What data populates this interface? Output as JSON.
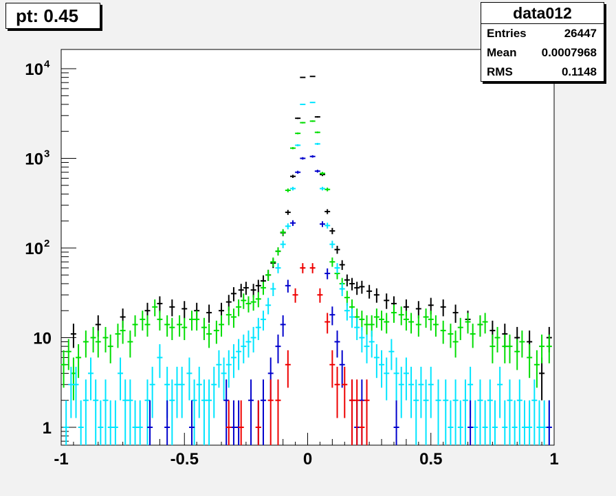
{
  "title_box": {
    "text": "pt: 0.45"
  },
  "stats_box": {
    "name": "data012",
    "rows": [
      {
        "label": "Entries",
        "value": "26447"
      },
      {
        "label": "Mean",
        "value": "0.0007968"
      },
      {
        "label": "RMS",
        "value": "0.1148"
      }
    ]
  },
  "colors": {
    "background": "#f2f2f2",
    "frame": "#ffffff"
  },
  "chart_data": {
    "type": "scatter",
    "title": "",
    "xlabel": "",
    "ylabel": "",
    "xlim": [
      -1,
      1
    ],
    "ylim": [
      0.6,
      17000
    ],
    "yscale": "log",
    "grid": false,
    "legend": "none",
    "xticks": [
      {
        "value": -1,
        "label": "-1"
      },
      {
        "value": -0.5,
        "label": "-0.5"
      },
      {
        "value": 0,
        "label": "0"
      },
      {
        "value": 0.5,
        "label": "0.5"
      },
      {
        "value": 1,
        "label": "1"
      }
    ],
    "yticks": [
      {
        "value": 1,
        "label": "1"
      },
      {
        "value": 10,
        "label": "10"
      },
      {
        "value": 100,
        "label": "10",
        "exp": "2"
      },
      {
        "value": 1000,
        "label": "10",
        "exp": "3"
      },
      {
        "value": 10000,
        "label": "10",
        "exp": "4"
      }
    ],
    "series": [
      {
        "color": "#000000",
        "points": [
          [
            -0.95,
            11
          ],
          [
            -0.85,
            14
          ],
          [
            -0.75,
            17
          ],
          [
            -0.65,
            20
          ],
          [
            -0.6,
            24
          ],
          [
            -0.55,
            22
          ],
          [
            -0.5,
            21
          ],
          [
            -0.45,
            20
          ],
          [
            -0.4,
            19
          ],
          [
            -0.35,
            20
          ],
          [
            -0.32,
            25
          ],
          [
            -0.3,
            31
          ],
          [
            -0.27,
            34
          ],
          [
            -0.25,
            36
          ],
          [
            -0.22,
            34
          ],
          [
            -0.2,
            38
          ],
          [
            -0.18,
            43
          ],
          [
            -0.16,
            50
          ],
          [
            -0.14,
            68
          ],
          [
            -0.12,
            92
          ],
          [
            -0.1,
            148
          ],
          [
            -0.08,
            250
          ],
          [
            -0.06,
            630
          ],
          [
            -0.04,
            2800
          ],
          [
            -0.02,
            8000
          ],
          [
            0.02,
            8200
          ],
          [
            0.04,
            2900
          ],
          [
            0.06,
            660
          ],
          [
            0.08,
            255
          ],
          [
            0.1,
            155
          ],
          [
            0.12,
            96
          ],
          [
            0.14,
            65
          ],
          [
            0.16,
            44
          ],
          [
            0.18,
            40
          ],
          [
            0.2,
            36
          ],
          [
            0.22,
            37
          ],
          [
            0.25,
            33
          ],
          [
            0.28,
            30
          ],
          [
            0.32,
            26
          ],
          [
            0.35,
            24
          ],
          [
            0.4,
            22
          ],
          [
            0.45,
            21
          ],
          [
            0.5,
            23
          ],
          [
            0.55,
            22
          ],
          [
            0.6,
            19
          ],
          [
            0.65,
            16
          ],
          [
            0.7,
            14
          ],
          [
            0.75,
            12
          ],
          [
            0.8,
            11
          ],
          [
            0.85,
            10
          ],
          [
            0.9,
            9
          ],
          [
            0.95,
            4
          ],
          [
            0.98,
            10
          ]
        ]
      },
      {
        "color": "#00dd00",
        "points": [
          [
            -0.99,
            5
          ],
          [
            -0.97,
            7
          ],
          [
            -0.95,
            4
          ],
          [
            -0.93,
            6
          ],
          [
            -0.9,
            9
          ],
          [
            -0.87,
            10
          ],
          [
            -0.85,
            9
          ],
          [
            -0.82,
            10
          ],
          [
            -0.8,
            8
          ],
          [
            -0.77,
            11
          ],
          [
            -0.75,
            12
          ],
          [
            -0.72,
            9
          ],
          [
            -0.7,
            14
          ],
          [
            -0.67,
            16
          ],
          [
            -0.65,
            14
          ],
          [
            -0.62,
            22
          ],
          [
            -0.6,
            16
          ],
          [
            -0.57,
            14
          ],
          [
            -0.55,
            13
          ],
          [
            -0.52,
            14
          ],
          [
            -0.5,
            13
          ],
          [
            -0.47,
            16
          ],
          [
            -0.45,
            16
          ],
          [
            -0.42,
            13
          ],
          [
            -0.4,
            11
          ],
          [
            -0.37,
            12
          ],
          [
            -0.35,
            14
          ],
          [
            -0.32,
            18
          ],
          [
            -0.3,
            17
          ],
          [
            -0.28,
            22
          ],
          [
            -0.26,
            26
          ],
          [
            -0.24,
            24
          ],
          [
            -0.22,
            25
          ],
          [
            -0.2,
            27
          ],
          [
            -0.18,
            36
          ],
          [
            -0.16,
            50
          ],
          [
            -0.14,
            70
          ],
          [
            -0.12,
            92
          ],
          [
            -0.1,
            150
          ],
          [
            -0.08,
            440
          ],
          [
            -0.06,
            1300
          ],
          [
            -0.04,
            1900
          ],
          [
            -0.02,
            2500
          ],
          [
            0.02,
            2600
          ],
          [
            0.04,
            1950
          ],
          [
            0.06,
            680
          ],
          [
            0.08,
            450
          ],
          [
            0.1,
            70
          ],
          [
            0.12,
            52
          ],
          [
            0.14,
            40
          ],
          [
            0.16,
            28
          ],
          [
            0.18,
            22
          ],
          [
            0.2,
            17
          ],
          [
            0.22,
            16
          ],
          [
            0.24,
            14
          ],
          [
            0.26,
            14
          ],
          [
            0.28,
            17
          ],
          [
            0.3,
            16
          ],
          [
            0.32,
            15
          ],
          [
            0.35,
            19
          ],
          [
            0.38,
            18
          ],
          [
            0.4,
            16
          ],
          [
            0.42,
            15
          ],
          [
            0.45,
            14
          ],
          [
            0.48,
            17
          ],
          [
            0.5,
            16
          ],
          [
            0.52,
            14
          ],
          [
            0.55,
            12
          ],
          [
            0.58,
            11
          ],
          [
            0.6,
            9
          ],
          [
            0.62,
            13
          ],
          [
            0.65,
            15
          ],
          [
            0.67,
            11
          ],
          [
            0.7,
            14
          ],
          [
            0.72,
            15
          ],
          [
            0.75,
            8
          ],
          [
            0.77,
            10
          ],
          [
            0.8,
            8
          ],
          [
            0.82,
            8
          ],
          [
            0.85,
            7
          ],
          [
            0.87,
            9
          ],
          [
            0.9,
            6
          ],
          [
            0.93,
            5
          ],
          [
            0.95,
            8
          ],
          [
            0.98,
            8
          ]
        ]
      },
      {
        "color": "#00e5ff",
        "points": [
          [
            -0.98,
            1
          ],
          [
            -0.96,
            3
          ],
          [
            -0.94,
            3
          ],
          [
            -0.92,
            1
          ],
          [
            -0.9,
            2
          ],
          [
            -0.88,
            4
          ],
          [
            -0.86,
            2
          ],
          [
            -0.84,
            1
          ],
          [
            -0.82,
            2
          ],
          [
            -0.8,
            1
          ],
          [
            -0.78,
            1
          ],
          [
            -0.76,
            4
          ],
          [
            -0.74,
            2
          ],
          [
            -0.72,
            2
          ],
          [
            -0.7,
            1
          ],
          [
            -0.68,
            1
          ],
          [
            -0.65,
            2
          ],
          [
            -0.63,
            3
          ],
          [
            -0.6,
            6
          ],
          [
            -0.57,
            3
          ],
          [
            -0.55,
            2
          ],
          [
            -0.53,
            3
          ],
          [
            -0.51,
            3
          ],
          [
            -0.48,
            4
          ],
          [
            -0.46,
            2
          ],
          [
            -0.44,
            3
          ],
          [
            -0.42,
            2
          ],
          [
            -0.4,
            2
          ],
          [
            -0.38,
            3
          ],
          [
            -0.36,
            5
          ],
          [
            -0.34,
            4
          ],
          [
            -0.32,
            5
          ],
          [
            -0.3,
            6
          ],
          [
            -0.28,
            7
          ],
          [
            -0.26,
            8
          ],
          [
            -0.24,
            9
          ],
          [
            -0.22,
            10
          ],
          [
            -0.2,
            13
          ],
          [
            -0.18,
            16
          ],
          [
            -0.16,
            23
          ],
          [
            -0.14,
            35
          ],
          [
            -0.12,
            60
          ],
          [
            -0.1,
            110
          ],
          [
            -0.08,
            175
          ],
          [
            -0.06,
            460
          ],
          [
            -0.04,
            1400
          ],
          [
            -0.02,
            4000
          ],
          [
            0.02,
            4200
          ],
          [
            0.04,
            1450
          ],
          [
            0.06,
            460
          ],
          [
            0.08,
            178
          ],
          [
            0.1,
            110
          ],
          [
            0.12,
            60
          ],
          [
            0.14,
            35
          ],
          [
            0.16,
            20
          ],
          [
            0.18,
            17
          ],
          [
            0.2,
            13
          ],
          [
            0.22,
            10
          ],
          [
            0.24,
            8
          ],
          [
            0.26,
            9
          ],
          [
            0.28,
            6
          ],
          [
            0.3,
            5
          ],
          [
            0.32,
            4
          ],
          [
            0.34,
            7
          ],
          [
            0.36,
            4
          ],
          [
            0.38,
            3
          ],
          [
            0.4,
            4
          ],
          [
            0.42,
            3
          ],
          [
            0.44,
            2
          ],
          [
            0.46,
            3
          ],
          [
            0.48,
            2
          ],
          [
            0.5,
            3
          ],
          [
            0.53,
            2
          ],
          [
            0.56,
            2
          ],
          [
            0.58,
            1
          ],
          [
            0.6,
            2
          ],
          [
            0.62,
            1
          ],
          [
            0.64,
            2
          ],
          [
            0.66,
            3
          ],
          [
            0.68,
            1
          ],
          [
            0.7,
            2
          ],
          [
            0.72,
            1
          ],
          [
            0.74,
            2
          ],
          [
            0.76,
            1
          ],
          [
            0.78,
            3
          ],
          [
            0.8,
            1
          ],
          [
            0.82,
            2
          ],
          [
            0.84,
            1
          ],
          [
            0.86,
            2
          ],
          [
            0.88,
            1
          ],
          [
            0.9,
            1
          ],
          [
            0.92,
            2
          ],
          [
            0.94,
            1
          ],
          [
            0.96,
            1
          ],
          [
            0.98,
            1
          ]
        ]
      },
      {
        "color": "#0000cc",
        "points": [
          [
            -0.64,
            1
          ],
          [
            -0.57,
            1
          ],
          [
            -0.47,
            1
          ],
          [
            -0.33,
            2
          ],
          [
            -0.3,
            1
          ],
          [
            -0.28,
            1
          ],
          [
            -0.23,
            2
          ],
          [
            -0.2,
            1
          ],
          [
            -0.18,
            2
          ],
          [
            -0.15,
            4
          ],
          [
            -0.12,
            8
          ],
          [
            -0.1,
            14
          ],
          [
            -0.08,
            38
          ],
          [
            -0.06,
            190
          ],
          [
            -0.04,
            700
          ],
          [
            -0.02,
            1000
          ],
          [
            0.02,
            1050
          ],
          [
            0.04,
            720
          ],
          [
            0.06,
            185
          ],
          [
            0.08,
            52
          ],
          [
            0.1,
            18
          ],
          [
            0.12,
            9
          ],
          [
            0.14,
            5
          ],
          [
            0.18,
            2
          ],
          [
            0.2,
            1
          ],
          [
            0.22,
            2
          ],
          [
            0.36,
            1
          ],
          [
            0.66,
            1
          ],
          [
            0.98,
            1
          ]
        ]
      },
      {
        "color": "#ee0000",
        "points": [
          [
            -0.32,
            1
          ],
          [
            -0.27,
            1
          ],
          [
            -0.2,
            1
          ],
          [
            -0.15,
            2
          ],
          [
            -0.12,
            2
          ],
          [
            -0.08,
            5
          ],
          [
            -0.05,
            30
          ],
          [
            -0.02,
            60
          ],
          [
            0.02,
            60
          ],
          [
            0.05,
            30
          ],
          [
            0.08,
            15
          ],
          [
            0.1,
            5
          ],
          [
            0.12,
            3
          ],
          [
            0.15,
            3
          ],
          [
            0.18,
            2
          ],
          [
            0.2,
            2
          ],
          [
            0.22,
            1
          ],
          [
            0.24,
            2
          ]
        ]
      }
    ]
  }
}
